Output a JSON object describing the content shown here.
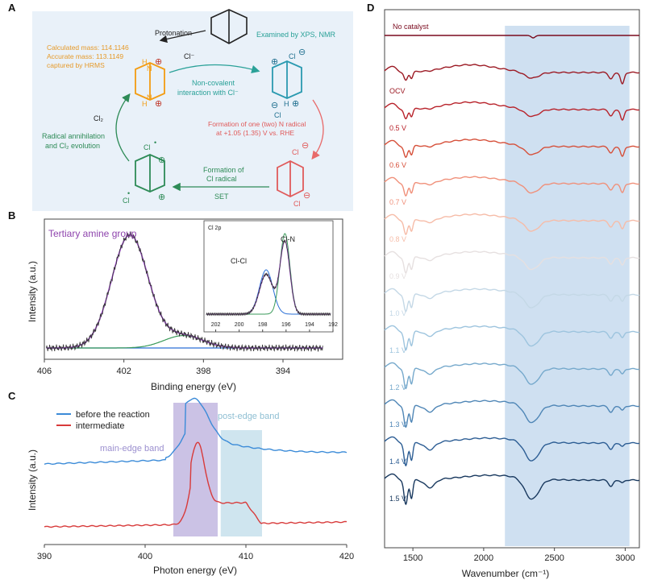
{
  "panels": {
    "A": "A",
    "B": "B",
    "C": "C",
    "D": "D"
  },
  "panelA": {
    "protonation": "Protonation",
    "calc": [
      "Calculated mass: 114.1146",
      "Accurate mass: 113.1149",
      "captured by HRMS"
    ],
    "examined": "Examined by XPS, NMR",
    "cl_minus": "Cl⁻",
    "noncovalent": [
      "Non-covalent",
      "interaction with Cl⁻"
    ],
    "formation_n": [
      "Formation of one (two) N radical",
      "at +1.05 (1.35) V vs. RHE"
    ],
    "formation_cl": [
      "Formation of",
      "Cl radical"
    ],
    "set": "SET",
    "cl2": "Cl₂",
    "annihilation": [
      "Radical annihilation",
      "and Cl₂ evolution"
    ],
    "atoms": {
      "H": "H",
      "N": "N",
      "Cl": "Cl",
      "plus": "⊕",
      "minus": "⊖",
      "dot": "•"
    }
  },
  "chart_data": [
    {
      "panel": "B",
      "type": "line",
      "xlabel": "Binding energy (eV)",
      "ylabel": "Intensity (a.u.)",
      "xlim": [
        406,
        391
      ],
      "x_ticks": [
        406,
        402,
        398,
        394
      ],
      "annotation": "Tertiary amine group",
      "series_colors": {
        "raw": "#333333",
        "main_fit": "#a04ad0",
        "side_fit": "#3a9a5a",
        "baseline": "#2a6fd6"
      },
      "main_peak": {
        "center": 401.7,
        "height": 1.0
      },
      "side_peak": {
        "center": 399.0,
        "height": 0.11
      },
      "inset": {
        "label": "Cl 2p",
        "xlim": [
          203,
          192
        ],
        "x_ticks": [
          202,
          200,
          198,
          196,
          194,
          192
        ],
        "peaks": [
          {
            "name": "Cl-Cl",
            "center": 197.7,
            "height": 0.55
          },
          {
            "name": "Cl-N",
            "center": 196.1,
            "height": 1.0
          }
        ],
        "colors": {
          "raw": "#333333",
          "sum": "#a04ad0",
          "p1": "#2a6fd6",
          "p2": "#3a9a5a"
        }
      }
    },
    {
      "panel": "C",
      "type": "line",
      "xlabel": "Photon energy (eV)",
      "ylabel": "Intensity (a.u.)",
      "xlim": [
        390,
        420
      ],
      "x_ticks": [
        390,
        400,
        410,
        420
      ],
      "series": [
        {
          "name": "before the reaction",
          "color": "#3b8bd8"
        },
        {
          "name": "intermediate",
          "color": "#d83a3a"
        }
      ],
      "bands": [
        {
          "name": "main-edge band",
          "from": 402.8,
          "to": 407.2,
          "color": "#b9aedc"
        },
        {
          "name": "post-edge band",
          "from": 407.5,
          "to": 411.6,
          "color": "#bfdce9"
        }
      ],
      "legend": "top-left"
    },
    {
      "panel": "D",
      "type": "line",
      "xlabel": "Wavenumber (cm⁻¹)",
      "xlim": [
        1300,
        3100
      ],
      "x_ticks": [
        1500,
        2000,
        2500,
        3000
      ],
      "highlight": {
        "from": 2150,
        "to": 3030,
        "color": "#cfe0f1"
      },
      "series": [
        {
          "name": "No catalyst",
          "color": "#7a0a1e"
        },
        {
          "name": "OCV",
          "color": "#9c1a24"
        },
        {
          "name": "0.5 V",
          "color": "#b8222a"
        },
        {
          "name": "0.6 V",
          "color": "#d6503a"
        },
        {
          "name": "0.7 V",
          "color": "#f0907a"
        },
        {
          "name": "0.8 V",
          "color": "#f6bca8"
        },
        {
          "name": "0.9 V",
          "color": "#e6e0e0"
        },
        {
          "name": "1.0 V",
          "color": "#c4d8e6"
        },
        {
          "name": "1.1 V",
          "color": "#9dc4de"
        },
        {
          "name": "1.2 V",
          "color": "#76a9cc"
        },
        {
          "name": "1.3 V",
          "color": "#4f86b6"
        },
        {
          "name": "1.4 V",
          "color": "#2c5d94"
        },
        {
          "name": "1.5 V",
          "color": "#18385e"
        }
      ]
    }
  ]
}
